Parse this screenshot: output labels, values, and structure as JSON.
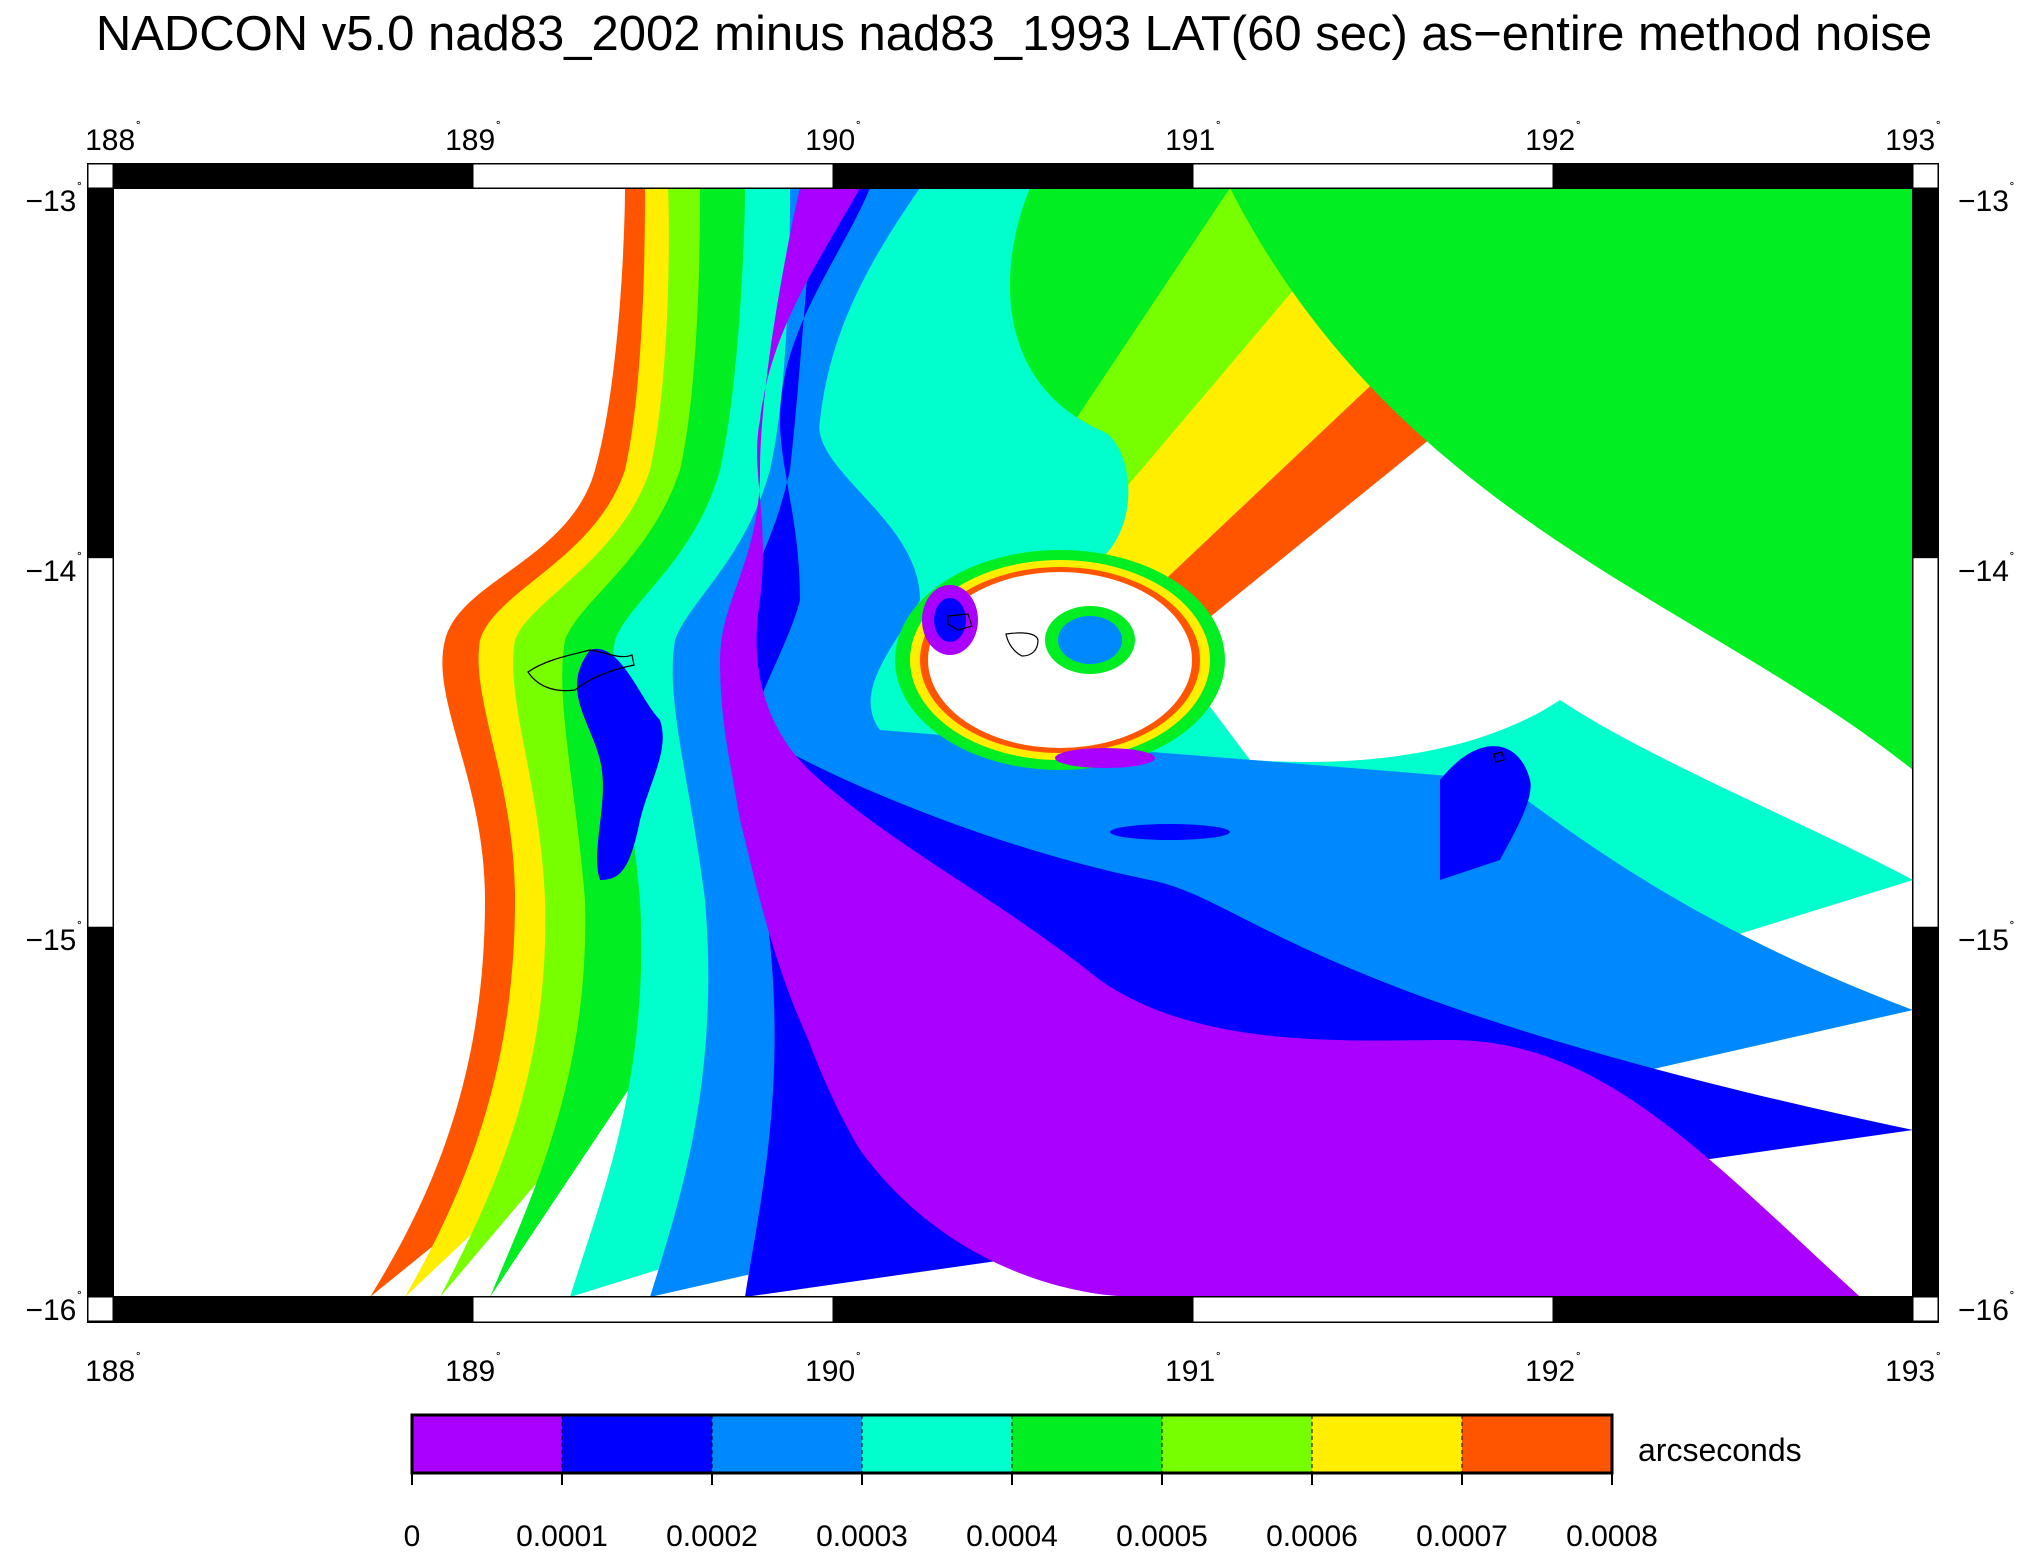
{
  "title": "NADCON v5.0 nad83_2002 minus nad83_1993 LAT(60 sec) as−entire method noise",
  "map": {
    "lon_ticks": [
      "188",
      "189",
      "190",
      "191",
      "192",
      "193"
    ],
    "lat_ticks": [
      "−13",
      "−14",
      "−15",
      "−16"
    ],
    "lon_range": [
      188,
      193
    ],
    "lat_range": [
      -16,
      -13
    ],
    "degree_symbol": "˚"
  },
  "colorbar": {
    "unit": "arcseconds",
    "tick_labels": [
      "0",
      "0.0001",
      "0.0002",
      "0.0003",
      "0.0004",
      "0.0005",
      "0.0006",
      "0.0007",
      "0.0008"
    ],
    "bins": [
      {
        "from": 0.0,
        "to": 0.0001,
        "color": "#aa00ff"
      },
      {
        "from": 0.0001,
        "to": 0.0002,
        "color": "#0000ff"
      },
      {
        "from": 0.0002,
        "to": 0.0003,
        "color": "#0088ff"
      },
      {
        "from": 0.0003,
        "to": 0.0004,
        "color": "#00ffcc"
      },
      {
        "from": 0.0004,
        "to": 0.0005,
        "color": "#00ee22"
      },
      {
        "from": 0.0005,
        "to": 0.0006,
        "color": "#77ff00"
      },
      {
        "from": 0.0006,
        "to": 0.0007,
        "color": "#ffee00"
      },
      {
        "from": 0.0007,
        "to": 0.0008,
        "color": "#ff5500"
      }
    ]
  }
}
